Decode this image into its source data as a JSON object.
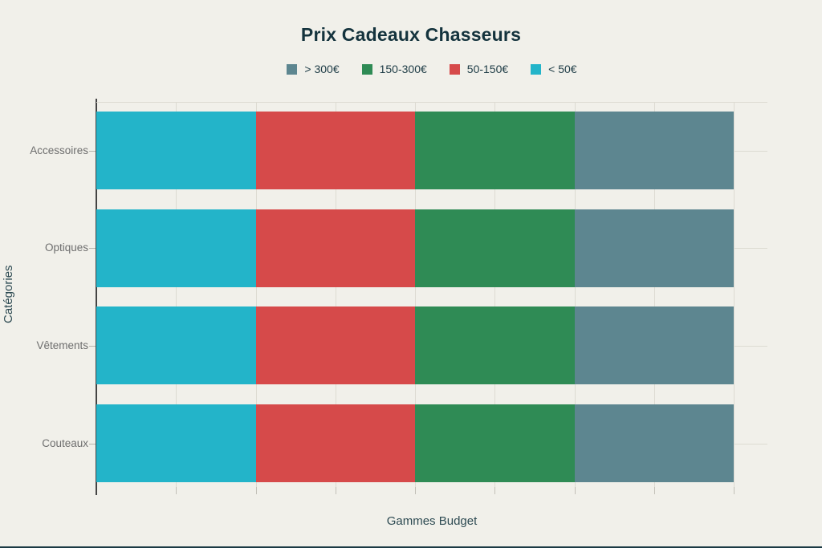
{
  "page": {
    "background": "#f1f0ea",
    "bottom_border_color": "#1b3a44"
  },
  "chart_data": {
    "type": "bar",
    "orientation": "horizontal",
    "stacked": true,
    "title": "Prix Cadeaux Chasseurs",
    "xlabel": "Gammes Budget",
    "ylabel": "Catégories",
    "categories": [
      "Accessoires",
      "Optiques",
      "Vêtements",
      "Couteaux"
    ],
    "series": [
      {
        "name": "< 50€",
        "color": "#23b4c9",
        "values": [
          1,
          1,
          1,
          1
        ]
      },
      {
        "name": "50-150€",
        "color": "#d64a4a",
        "values": [
          1,
          1,
          1,
          1
        ]
      },
      {
        "name": "150-300€",
        "color": "#2f8b55",
        "values": [
          1,
          1,
          1,
          1
        ]
      },
      {
        "name": "> 300€",
        "color": "#5d8690",
        "values": [
          1,
          1,
          1,
          1
        ]
      }
    ],
    "legend": {
      "position": "top-center",
      "order": [
        "> 300€",
        "150-300€",
        "50-150€",
        "< 50€"
      ]
    },
    "xlim": [
      0,
      4.2
    ],
    "grid": true,
    "x_tick_labels_visible": false,
    "colors": {
      "title_text": "#14333d",
      "axis_title_text": "#2d4a52",
      "category_text": "#6e6e6e",
      "gridline": "#dddbd2",
      "axis_line": "#444444"
    }
  }
}
